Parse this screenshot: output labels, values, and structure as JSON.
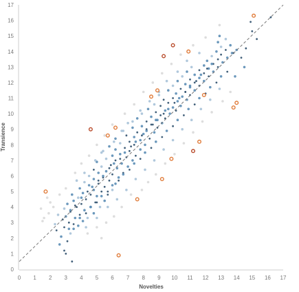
{
  "chart_data": {
    "type": "scatter",
    "title": "",
    "xlabel": "Novelties",
    "ylabel": "Transience",
    "xlim": [
      0,
      17
    ],
    "ylim": [
      0,
      17
    ],
    "x_ticks": [
      0,
      1,
      2,
      3,
      4,
      5,
      6,
      7,
      8,
      9,
      10,
      11,
      12,
      13,
      14,
      15,
      16,
      17
    ],
    "y_ticks": [
      0,
      1,
      2,
      3,
      4,
      5,
      6,
      7,
      8,
      9,
      10,
      11,
      12,
      13,
      14,
      15,
      16,
      17
    ],
    "grid": false,
    "legend": "none",
    "trend_line": {
      "slope": 0.97,
      "intercept": 0.5,
      "style": "dashed",
      "color": "#777777"
    },
    "colors": {
      "dark": "#2e4f6b",
      "medium": "#5b8db5",
      "light": "#a7c2d8",
      "pale": "#d9d9d9",
      "outlier_orange": "#e07b39",
      "outlier_red": "#b84a2a"
    },
    "outliers": [
      {
        "x": 4.6,
        "y": 9.0,
        "color": "#b84a2a"
      },
      {
        "x": 9.3,
        "y": 13.7,
        "color": "#b84a2a"
      },
      {
        "x": 9.9,
        "y": 14.4,
        "color": "#b84a2a"
      },
      {
        "x": 11.2,
        "y": 7.6,
        "color": "#b84a2a"
      },
      {
        "x": 6.4,
        "y": 0.9,
        "color": "#e07b39"
      },
      {
        "x": 1.7,
        "y": 5.0,
        "color": "#e07b39"
      },
      {
        "x": 5.7,
        "y": 8.6,
        "color": "#e07b39"
      },
      {
        "x": 6.2,
        "y": 9.1,
        "color": "#e07b39"
      },
      {
        "x": 7.6,
        "y": 4.5,
        "color": "#e07b39"
      },
      {
        "x": 8.5,
        "y": 11.1,
        "color": "#e07b39"
      },
      {
        "x": 8.9,
        "y": 11.5,
        "color": "#e07b39"
      },
      {
        "x": 9.2,
        "y": 5.8,
        "color": "#e07b39"
      },
      {
        "x": 9.8,
        "y": 7.1,
        "color": "#e07b39"
      },
      {
        "x": 10.9,
        "y": 14.0,
        "color": "#e07b39"
      },
      {
        "x": 11.6,
        "y": 8.2,
        "color": "#e07b39"
      },
      {
        "x": 11.9,
        "y": 11.2,
        "color": "#e07b39"
      },
      {
        "x": 13.8,
        "y": 10.4,
        "color": "#e07b39"
      },
      {
        "x": 14.0,
        "y": 10.7,
        "color": "#e07b39"
      },
      {
        "x": 15.1,
        "y": 16.3,
        "color": "#e07b39"
      }
    ],
    "points": [
      [
        2.9,
        1.2,
        0
      ],
      [
        3.0,
        1.0,
        0
      ],
      [
        2.6,
        1.6,
        1
      ],
      [
        3.1,
        1.8,
        0
      ],
      [
        2.7,
        2.1,
        1
      ],
      [
        2.4,
        2.5,
        0
      ],
      [
        3.3,
        2.3,
        2
      ],
      [
        2.9,
        2.7,
        0
      ],
      [
        3.5,
        2.6,
        1
      ],
      [
        2.3,
        2.9,
        2
      ],
      [
        3.8,
        2.8,
        1
      ],
      [
        3.2,
        3.0,
        0
      ],
      [
        4.1,
        3.1,
        1
      ],
      [
        2.8,
        3.2,
        0
      ],
      [
        3.6,
        3.3,
        1
      ],
      [
        4.4,
        3.3,
        2
      ],
      [
        3.0,
        3.4,
        1
      ],
      [
        2.5,
        3.5,
        2
      ],
      [
        3.9,
        3.5,
        0
      ],
      [
        4.8,
        3.6,
        1
      ],
      [
        3.3,
        3.7,
        0
      ],
      [
        4.2,
        3.8,
        1
      ],
      [
        2.9,
        3.9,
        2
      ],
      [
        3.7,
        4.0,
        0
      ],
      [
        4.6,
        4.0,
        1
      ],
      [
        5.2,
        4.0,
        2
      ],
      [
        3.1,
        4.2,
        1
      ],
      [
        4.0,
        4.2,
        0
      ],
      [
        3.5,
        4.4,
        1
      ],
      [
        4.9,
        4.3,
        0
      ],
      [
        5.5,
        4.4,
        1
      ],
      [
        4.3,
        4.5,
        0
      ],
      [
        3.8,
        4.6,
        2
      ],
      [
        5.0,
        4.7,
        1
      ],
      [
        4.6,
        4.8,
        0
      ],
      [
        3.4,
        4.8,
        1
      ],
      [
        5.7,
        4.8,
        0
      ],
      [
        4.1,
        4.9,
        1
      ],
      [
        5.3,
        5.0,
        0
      ],
      [
        4.8,
        5.1,
        1
      ],
      [
        6.0,
        5.1,
        2
      ],
      [
        3.9,
        5.2,
        1
      ],
      [
        5.5,
        5.3,
        0
      ],
      [
        4.5,
        5.4,
        1
      ],
      [
        5.1,
        5.5,
        0
      ],
      [
        6.2,
        5.5,
        1
      ],
      [
        4.2,
        5.6,
        2
      ],
      [
        5.8,
        5.7,
        0
      ],
      [
        4.8,
        5.8,
        1
      ],
      [
        5.4,
        5.9,
        0
      ],
      [
        6.4,
        5.9,
        1
      ],
      [
        4.5,
        6.0,
        2
      ],
      [
        6.0,
        6.1,
        0
      ],
      [
        5.1,
        6.2,
        1
      ],
      [
        6.7,
        6.2,
        0
      ],
      [
        5.6,
        6.3,
        1
      ],
      [
        4.8,
        6.4,
        0
      ],
      [
        6.3,
        6.5,
        1
      ],
      [
        5.3,
        6.6,
        2
      ],
      [
        7.0,
        6.6,
        1
      ],
      [
        5.9,
        6.7,
        0
      ],
      [
        6.6,
        6.8,
        1
      ],
      [
        5.0,
        6.9,
        1
      ],
      [
        6.2,
        7.0,
        0
      ],
      [
        7.3,
        7.0,
        1
      ],
      [
        5.6,
        7.1,
        2
      ],
      [
        6.9,
        7.2,
        0
      ],
      [
        6.0,
        7.3,
        1
      ],
      [
        7.5,
        7.3,
        0
      ],
      [
        6.5,
        7.4,
        1
      ],
      [
        5.3,
        7.5,
        2
      ],
      [
        7.1,
        7.6,
        0
      ],
      [
        6.2,
        7.7,
        1
      ],
      [
        7.8,
        7.7,
        1
      ],
      [
        6.8,
        7.8,
        0
      ],
      [
        5.8,
        7.9,
        1
      ],
      [
        7.4,
        8.0,
        0
      ],
      [
        8.1,
        8.0,
        1
      ],
      [
        6.5,
        8.1,
        2
      ],
      [
        7.1,
        8.2,
        0
      ],
      [
        7.8,
        8.3,
        1
      ],
      [
        6.2,
        8.4,
        1
      ],
      [
        8.4,
        8.4,
        0
      ],
      [
        7.4,
        8.5,
        1
      ],
      [
        6.9,
        8.6,
        0
      ],
      [
        8.0,
        8.7,
        1
      ],
      [
        7.6,
        8.8,
        0
      ],
      [
        8.7,
        8.8,
        1
      ],
      [
        6.6,
        8.9,
        2
      ],
      [
        8.2,
        9.0,
        0
      ],
      [
        7.3,
        9.1,
        1
      ],
      [
        8.9,
        9.1,
        0
      ],
      [
        7.9,
        9.2,
        1
      ],
      [
        8.5,
        9.3,
        0
      ],
      [
        7.0,
        9.4,
        2
      ],
      [
        9.2,
        9.4,
        1
      ],
      [
        8.2,
        9.5,
        0
      ],
      [
        8.8,
        9.6,
        1
      ],
      [
        7.6,
        9.7,
        1
      ],
      [
        9.4,
        9.7,
        0
      ],
      [
        8.5,
        9.8,
        1
      ],
      [
        9.1,
        9.9,
        0
      ],
      [
        7.9,
        10.0,
        2
      ],
      [
        9.7,
        10.0,
        1
      ],
      [
        8.8,
        10.1,
        0
      ],
      [
        9.4,
        10.2,
        1
      ],
      [
        10.1,
        10.2,
        0
      ],
      [
        8.3,
        10.3,
        1
      ],
      [
        9.9,
        10.4,
        1
      ],
      [
        9.1,
        10.5,
        0
      ],
      [
        10.4,
        10.5,
        1
      ],
      [
        8.7,
        10.6,
        2
      ],
      [
        9.6,
        10.7,
        0
      ],
      [
        10.2,
        10.8,
        1
      ],
      [
        9.3,
        10.9,
        0
      ],
      [
        10.8,
        10.9,
        1
      ],
      [
        9.9,
        11.0,
        0
      ],
      [
        10.5,
        11.1,
        1
      ],
      [
        9.0,
        11.2,
        2
      ],
      [
        11.0,
        11.2,
        0
      ],
      [
        10.1,
        11.3,
        1
      ],
      [
        10.7,
        11.4,
        0
      ],
      [
        9.6,
        11.5,
        1
      ],
      [
        11.3,
        11.5,
        1
      ],
      [
        10.4,
        11.6,
        0
      ],
      [
        11.0,
        11.7,
        1
      ],
      [
        9.9,
        11.8,
        2
      ],
      [
        11.6,
        11.8,
        0
      ],
      [
        10.7,
        11.9,
        1
      ],
      [
        11.3,
        12.0,
        0
      ],
      [
        10.2,
        12.1,
        1
      ],
      [
        11.9,
        12.1,
        1
      ],
      [
        11.0,
        12.2,
        0
      ],
      [
        11.6,
        12.3,
        1
      ],
      [
        10.5,
        12.4,
        2
      ],
      [
        12.2,
        12.4,
        0
      ],
      [
        11.3,
        12.5,
        1
      ],
      [
        11.9,
        12.6,
        0
      ],
      [
        10.8,
        12.7,
        1
      ],
      [
        12.5,
        12.7,
        1
      ],
      [
        11.6,
        12.8,
        0
      ],
      [
        12.2,
        12.9,
        1
      ],
      [
        11.1,
        13.0,
        2
      ],
      [
        12.8,
        13.0,
        0
      ],
      [
        11.9,
        13.1,
        1
      ],
      [
        12.5,
        13.2,
        0
      ],
      [
        13.1,
        13.3,
        1
      ],
      [
        12.1,
        13.4,
        1
      ],
      [
        12.8,
        13.5,
        0
      ],
      [
        13.4,
        13.6,
        1
      ],
      [
        12.4,
        13.7,
        2
      ],
      [
        13.0,
        13.8,
        0
      ],
      [
        13.7,
        13.9,
        1
      ],
      [
        12.7,
        14.0,
        1
      ],
      [
        13.3,
        14.1,
        0
      ],
      [
        14.0,
        14.1,
        1
      ],
      [
        13.0,
        14.3,
        2
      ],
      [
        13.6,
        14.4,
        1
      ],
      [
        12.8,
        14.6,
        1
      ],
      [
        13.3,
        14.8,
        2
      ],
      [
        12.9,
        15.0,
        1
      ],
      [
        14.3,
        13.6,
        0
      ],
      [
        14.6,
        14.2,
        0
      ],
      [
        15.0,
        15.3,
        0
      ],
      [
        15.3,
        14.8,
        0
      ],
      [
        16.2,
        16.2,
        0
      ],
      [
        14.9,
        15.9,
        0
      ],
      [
        13.8,
        13.9,
        0
      ],
      [
        14.5,
        13.0,
        1
      ],
      [
        13.9,
        12.4,
        1
      ],
      [
        3.4,
        0.5,
        0
      ],
      [
        1.6,
        3.3,
        3
      ],
      [
        1.9,
        3.6,
        3
      ],
      [
        1.4,
        3.9,
        3
      ],
      [
        2.0,
        4.3,
        3
      ],
      [
        1.8,
        4.6,
        3
      ],
      [
        1.5,
        3.1,
        3
      ],
      [
        2.2,
        4.0,
        3
      ],
      [
        2.6,
        4.8,
        3
      ],
      [
        3.0,
        5.2,
        3
      ],
      [
        4.4,
        2.3,
        3
      ],
      [
        5.0,
        2.7,
        3
      ],
      [
        5.6,
        3.0,
        3
      ],
      [
        6.1,
        3.4,
        3
      ],
      [
        5.3,
        2.0,
        3
      ],
      [
        6.6,
        4.0,
        3
      ],
      [
        7.2,
        4.8,
        3
      ],
      [
        7.9,
        5.1,
        3
      ],
      [
        8.3,
        5.6,
        3
      ],
      [
        8.8,
        6.1,
        3
      ],
      [
        9.4,
        6.8,
        3
      ],
      [
        10.0,
        7.4,
        3
      ],
      [
        10.6,
        8.1,
        3
      ],
      [
        11.2,
        8.8,
        3
      ],
      [
        11.8,
        9.5,
        3
      ],
      [
        12.4,
        10.1,
        3
      ],
      [
        13.1,
        10.8,
        3
      ],
      [
        13.6,
        11.4,
        3
      ],
      [
        3.6,
        6.2,
        3
      ],
      [
        4.0,
        6.8,
        3
      ],
      [
        4.5,
        7.3,
        3
      ],
      [
        5.0,
        8.0,
        3
      ],
      [
        5.5,
        8.6,
        3
      ],
      [
        6.0,
        9.3,
        3
      ],
      [
        6.8,
        10.0,
        3
      ],
      [
        7.4,
        10.6,
        3
      ],
      [
        8.0,
        11.4,
        3
      ],
      [
        8.6,
        12.0,
        3
      ],
      [
        9.2,
        12.6,
        3
      ],
      [
        9.8,
        13.2,
        3
      ],
      [
        10.4,
        13.8,
        3
      ],
      [
        11.2,
        14.4,
        3
      ],
      [
        12.0,
        14.9,
        3
      ],
      [
        12.9,
        15.7,
        3
      ],
      [
        3.7,
        5.7,
        2
      ],
      [
        4.2,
        6.2,
        2
      ],
      [
        4.9,
        7.0,
        2
      ],
      [
        5.4,
        7.6,
        2
      ],
      [
        6.1,
        8.2,
        2
      ],
      [
        6.7,
        8.9,
        2
      ],
      [
        7.3,
        9.5,
        2
      ],
      [
        7.8,
        10.2,
        2
      ],
      [
        8.4,
        10.8,
        2
      ],
      [
        9.0,
        11.4,
        2
      ],
      [
        9.5,
        12.1,
        2
      ],
      [
        10.2,
        12.7,
        2
      ],
      [
        10.8,
        13.4,
        2
      ],
      [
        11.6,
        13.9,
        2
      ],
      [
        4.3,
        2.7,
        2
      ],
      [
        5.0,
        3.3,
        2
      ],
      [
        5.7,
        4.0,
        2
      ],
      [
        6.3,
        4.5,
        2
      ],
      [
        6.9,
        5.1,
        2
      ],
      [
        7.5,
        5.8,
        2
      ],
      [
        8.1,
        6.4,
        2
      ],
      [
        8.7,
        7.0,
        2
      ],
      [
        9.3,
        7.7,
        2
      ],
      [
        9.9,
        8.3,
        2
      ],
      [
        10.5,
        9.0,
        2
      ],
      [
        11.1,
        9.6,
        2
      ],
      [
        11.7,
        10.3,
        2
      ],
      [
        12.3,
        10.9,
        2
      ],
      [
        12.9,
        11.6,
        2
      ],
      [
        3.3,
        3.8,
        1
      ],
      [
        3.6,
        4.1,
        0
      ],
      [
        4.0,
        4.6,
        1
      ],
      [
        4.4,
        5.0,
        0
      ],
      [
        4.7,
        5.3,
        1
      ],
      [
        5.1,
        5.7,
        0
      ],
      [
        5.4,
        6.0,
        1
      ],
      [
        5.8,
        6.5,
        0
      ],
      [
        6.1,
        6.8,
        1
      ],
      [
        6.5,
        7.1,
        0
      ],
      [
        6.8,
        7.5,
        1
      ],
      [
        7.2,
        7.9,
        0
      ],
      [
        7.5,
        8.2,
        1
      ],
      [
        7.9,
        8.6,
        0
      ],
      [
        8.2,
        8.9,
        1
      ],
      [
        8.6,
        9.3,
        0
      ],
      [
        8.9,
        9.6,
        1
      ],
      [
        9.3,
        10.0,
        0
      ],
      [
        9.6,
        10.3,
        1
      ],
      [
        10.0,
        10.7,
        0
      ],
      [
        10.3,
        11.0,
        1
      ],
      [
        10.7,
        11.4,
        0
      ],
      [
        11.0,
        11.8,
        1
      ],
      [
        11.4,
        12.1,
        0
      ],
      [
        11.7,
        12.5,
        1
      ],
      [
        12.1,
        12.9,
        0
      ],
      [
        12.4,
        13.2,
        1
      ],
      [
        3.2,
        2.6,
        1
      ],
      [
        3.5,
        2.9,
        0
      ],
      [
        3.9,
        3.3,
        1
      ],
      [
        4.3,
        3.6,
        0
      ],
      [
        4.6,
        4.0,
        1
      ],
      [
        5.0,
        4.3,
        0
      ],
      [
        5.3,
        4.7,
        1
      ],
      [
        5.7,
        5.0,
        0
      ],
      [
        6.0,
        5.4,
        1
      ],
      [
        6.4,
        5.7,
        0
      ],
      [
        6.7,
        6.1,
        1
      ],
      [
        7.1,
        6.4,
        0
      ],
      [
        7.4,
        6.8,
        1
      ],
      [
        7.8,
        7.1,
        0
      ],
      [
        8.1,
        7.5,
        1
      ],
      [
        8.5,
        7.8,
        0
      ],
      [
        8.8,
        8.2,
        1
      ],
      [
        9.2,
        8.5,
        0
      ],
      [
        9.5,
        8.9,
        1
      ],
      [
        9.9,
        9.2,
        0
      ],
      [
        10.2,
        9.6,
        1
      ],
      [
        10.6,
        9.9,
        0
      ],
      [
        10.9,
        10.3,
        1
      ],
      [
        11.3,
        10.6,
        0
      ],
      [
        11.6,
        11.0,
        1
      ],
      [
        12.0,
        11.3,
        0
      ],
      [
        12.3,
        11.7,
        1
      ],
      [
        12.7,
        12.0,
        0
      ],
      [
        13.0,
        12.4,
        1
      ],
      [
        13.4,
        12.7,
        0
      ]
    ]
  }
}
